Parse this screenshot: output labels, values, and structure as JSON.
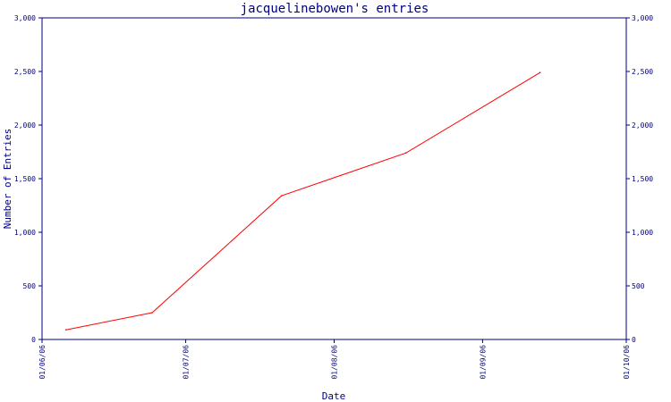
{
  "chart_data": {
    "type": "line",
    "title": "jacquelinebowen's entries",
    "xlabel": "Date",
    "ylabel": "Number of Entries",
    "ylim": [
      0,
      3000
    ],
    "y_ticks": [
      {
        "value": 0,
        "label": "0"
      },
      {
        "value": 500,
        "label": "500"
      },
      {
        "value": 1000,
        "label": "1,000"
      },
      {
        "value": 1500,
        "label": "1,500"
      },
      {
        "value": 2000,
        "label": "2,000"
      },
      {
        "value": 2500,
        "label": "2,500"
      },
      {
        "value": 3000,
        "label": "3,000"
      }
    ],
    "xlim": [
      "2006-06-01",
      "2006-10-01"
    ],
    "x_ticks": [
      {
        "value": "2006-06-01",
        "label": "01/06/06"
      },
      {
        "value": "2006-07-01",
        "label": "01/07/06"
      },
      {
        "value": "2006-08-01",
        "label": "01/08/06"
      },
      {
        "value": "2006-09-01",
        "label": "01/09/06"
      },
      {
        "value": "2006-10-01",
        "label": "01/10/06"
      }
    ],
    "series": [
      {
        "color": "#ff0000",
        "points": [
          {
            "x": "2006-06-06",
            "y": 90
          },
          {
            "x": "2006-06-24",
            "y": 250
          },
          {
            "x": "2006-07-21",
            "y": 1340
          },
          {
            "x": "2006-08-16",
            "y": 1740
          },
          {
            "x": "2006-09-13",
            "y": 2490
          }
        ]
      }
    ],
    "axes_color": "#000080",
    "grid": false,
    "legend": false
  }
}
